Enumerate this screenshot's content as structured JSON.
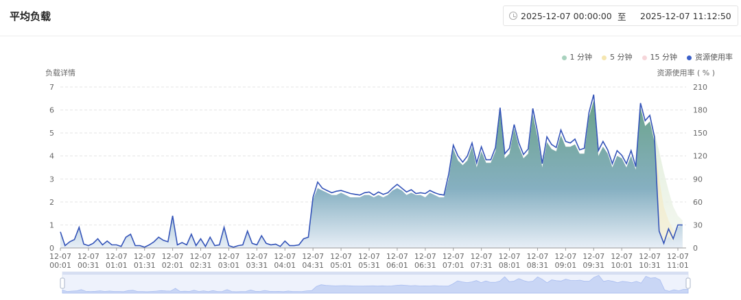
{
  "header": {
    "title": "平均负载",
    "range_start": "2025-12-07 00:00:00",
    "range_sep": "至",
    "range_end": "2025-12-07 11:12:50"
  },
  "colors": {
    "line": "#3353b8",
    "load1": "#a8d2be",
    "load5": "#f5e6b0",
    "load15": "#f6d6da",
    "accent": "#3a5fc8"
  },
  "chart_data": {
    "type": "area",
    "left_axis_name": "负载详情",
    "right_axis_name": "资源使用率 ( % )",
    "ylim_left": [
      0,
      7
    ],
    "yticks_left": [
      "0",
      "1",
      "2",
      "3",
      "4",
      "5",
      "6",
      "7"
    ],
    "ylim_right": [
      0,
      210
    ],
    "yticks_right": [
      "0",
      "30",
      "60",
      "90",
      "120",
      "150",
      "180",
      "210"
    ],
    "xtick_labels": [
      [
        "12-07",
        "00:01"
      ],
      [
        "12-07",
        "00:31"
      ],
      [
        "12-07",
        "01:01"
      ],
      [
        "12-07",
        "01:31"
      ],
      [
        "12-07",
        "02:01"
      ],
      [
        "12-07",
        "02:31"
      ],
      [
        "12-07",
        "03:01"
      ],
      [
        "12-07",
        "03:31"
      ],
      [
        "12-07",
        "04:01"
      ],
      [
        "12-07",
        "04:31"
      ],
      [
        "12-07",
        "05:01"
      ],
      [
        "12-07",
        "05:31"
      ],
      [
        "12-07",
        "06:01"
      ],
      [
        "12-07",
        "06:31"
      ],
      [
        "12-07",
        "07:01"
      ],
      [
        "12-07",
        "07:31"
      ],
      [
        "12-07",
        "08:01"
      ],
      [
        "12-07",
        "08:31"
      ],
      [
        "12-07",
        "09:01"
      ],
      [
        "12-07",
        "09:31"
      ],
      [
        "12-07",
        "10:01"
      ],
      [
        "12-07",
        "10:31"
      ],
      [
        "12-07",
        "11:01"
      ]
    ],
    "x_interval_minutes": 5,
    "legend": [
      "1 分钟",
      "5 分钟",
      "15 分钟",
      "资源使用率"
    ],
    "usage": [
      21,
      3,
      8,
      11,
      27,
      5,
      3,
      6,
      12,
      4,
      9,
      4,
      4,
      2,
      14,
      18,
      3,
      3,
      1,
      4,
      8,
      14,
      10,
      8,
      42,
      4,
      7,
      4,
      18,
      3,
      12,
      2,
      14,
      3,
      4,
      27,
      3,
      1,
      3,
      4,
      22,
      6,
      4,
      16,
      6,
      4,
      5,
      2,
      9,
      3,
      3,
      4,
      12,
      14,
      66,
      86,
      78,
      75,
      72,
      74,
      75,
      73,
      71,
      70,
      69,
      72,
      73,
      69,
      73,
      70,
      72,
      78,
      83,
      78,
      73,
      76,
      71,
      72,
      71,
      75,
      72,
      70,
      69,
      96,
      134,
      120,
      112,
      120,
      137,
      111,
      132,
      115,
      115,
      131,
      183,
      123,
      130,
      161,
      137,
      122,
      129,
      182,
      151,
      110,
      145,
      135,
      131,
      154,
      139,
      137,
      142,
      128,
      130,
      177,
      200,
      127,
      139,
      128,
      110,
      127,
      121,
      110,
      127,
      106,
      189,
      166,
      173,
      145,
      22,
      6,
      25,
      12,
      30,
      30
    ],
    "load_1min": [
      0.7,
      0.1,
      0.3,
      0.4,
      0.9,
      0.2,
      0.1,
      0.2,
      0.4,
      0.1,
      0.3,
      0.1,
      0.1,
      0.1,
      0.5,
      0.6,
      0.1,
      0.1,
      0.0,
      0.1,
      0.3,
      0.5,
      0.3,
      0.3,
      1.4,
      0.1,
      0.2,
      0.1,
      0.6,
      0.1,
      0.4,
      0.1,
      0.5,
      0.1,
      0.1,
      0.9,
      0.1,
      0.0,
      0.1,
      0.1,
      0.7,
      0.2,
      0.1,
      0.5,
      0.2,
      0.1,
      0.2,
      0.1,
      0.3,
      0.1,
      0.1,
      0.1,
      0.4,
      0.5,
      2.1,
      2.6,
      2.5,
      2.4,
      2.3,
      2.3,
      2.4,
      2.3,
      2.2,
      2.2,
      2.2,
      2.3,
      2.3,
      2.2,
      2.3,
      2.2,
      2.3,
      2.5,
      2.6,
      2.5,
      2.3,
      2.4,
      2.3,
      2.3,
      2.2,
      2.4,
      2.3,
      2.2,
      2.2,
      3.0,
      4.3,
      3.8,
      3.6,
      3.8,
      4.4,
      3.5,
      4.2,
      3.7,
      3.7,
      4.2,
      5.9,
      3.9,
      4.1,
      5.2,
      4.4,
      3.9,
      4.1,
      5.8,
      4.8,
      3.5,
      4.6,
      4.3,
      4.2,
      4.9,
      4.4,
      4.4,
      4.5,
      4.1,
      4.1,
      5.7,
      6.4,
      4.0,
      4.4,
      4.1,
      3.5,
      4.0,
      3.9,
      3.5,
      4.0,
      3.4,
      6.1,
      5.3,
      5.5,
      4.6,
      0.7,
      0.2,
      0.5,
      0.3,
      0.9,
      1.0
    ],
    "load_5min": [
      0.7,
      0.1,
      0.3,
      0.4,
      0.9,
      0.2,
      0.1,
      0.2,
      0.4,
      0.1,
      0.3,
      0.1,
      0.1,
      0.1,
      0.5,
      0.6,
      0.1,
      0.1,
      0.0,
      0.1,
      0.3,
      0.5,
      0.3,
      0.3,
      1.4,
      0.1,
      0.2,
      0.1,
      0.6,
      0.1,
      0.4,
      0.1,
      0.5,
      0.1,
      0.1,
      0.9,
      0.1,
      0.0,
      0.1,
      0.1,
      0.7,
      0.2,
      0.1,
      0.5,
      0.2,
      0.1,
      0.2,
      0.1,
      0.3,
      0.1,
      0.1,
      0.1,
      0.4,
      0.5,
      2.1,
      2.6,
      2.5,
      2.4,
      2.3,
      2.3,
      2.4,
      2.3,
      2.2,
      2.2,
      2.2,
      2.3,
      2.3,
      2.2,
      2.3,
      2.2,
      2.3,
      2.5,
      2.6,
      2.5,
      2.3,
      2.4,
      2.3,
      2.3,
      2.2,
      2.4,
      2.3,
      2.2,
      2.2,
      3.0,
      4.3,
      3.8,
      3.6,
      3.8,
      4.4,
      3.5,
      4.2,
      3.7,
      3.7,
      4.2,
      5.9,
      3.9,
      4.1,
      5.2,
      4.4,
      3.9,
      4.1,
      5.8,
      4.8,
      3.5,
      4.6,
      4.3,
      4.2,
      4.9,
      4.4,
      4.4,
      4.5,
      4.1,
      4.1,
      5.7,
      6.4,
      4.0,
      4.4,
      4.1,
      3.5,
      4.0,
      3.9,
      3.5,
      4.0,
      3.4,
      6.1,
      5.3,
      5.5,
      4.6,
      3.0,
      1.8,
      1.2,
      0.8,
      0.7,
      0.8
    ],
    "load_15min": [
      0.7,
      0.1,
      0.3,
      0.4,
      0.9,
      0.2,
      0.1,
      0.2,
      0.4,
      0.1,
      0.3,
      0.1,
      0.1,
      0.1,
      0.5,
      0.6,
      0.1,
      0.1,
      0.0,
      0.1,
      0.3,
      0.5,
      0.3,
      0.3,
      1.4,
      0.1,
      0.2,
      0.1,
      0.6,
      0.1,
      0.4,
      0.1,
      0.5,
      0.1,
      0.1,
      0.9,
      0.1,
      0.0,
      0.1,
      0.1,
      0.7,
      0.2,
      0.1,
      0.5,
      0.2,
      0.1,
      0.2,
      0.1,
      0.3,
      0.1,
      0.1,
      0.1,
      0.4,
      0.5,
      2.1,
      2.6,
      2.5,
      2.4,
      2.3,
      2.3,
      2.4,
      2.3,
      2.2,
      2.2,
      2.2,
      2.3,
      2.3,
      2.2,
      2.3,
      2.2,
      2.3,
      2.5,
      2.6,
      2.5,
      2.3,
      2.4,
      2.3,
      2.3,
      2.2,
      2.4,
      2.3,
      2.2,
      2.2,
      3.0,
      4.3,
      3.8,
      3.6,
      3.8,
      4.4,
      3.5,
      4.2,
      3.7,
      3.7,
      4.2,
      5.9,
      3.9,
      4.1,
      5.2,
      4.4,
      3.9,
      4.1,
      5.8,
      4.8,
      3.5,
      4.6,
      4.3,
      4.2,
      4.9,
      4.4,
      4.4,
      4.5,
      4.1,
      4.1,
      5.7,
      6.4,
      4.0,
      4.4,
      4.1,
      3.5,
      4.0,
      3.9,
      3.5,
      4.0,
      3.4,
      6.1,
      5.3,
      5.5,
      5.0,
      4.2,
      3.3,
      2.5,
      1.8,
      1.4,
      1.2
    ],
    "zoom_range_percent": [
      0,
      100
    ]
  }
}
